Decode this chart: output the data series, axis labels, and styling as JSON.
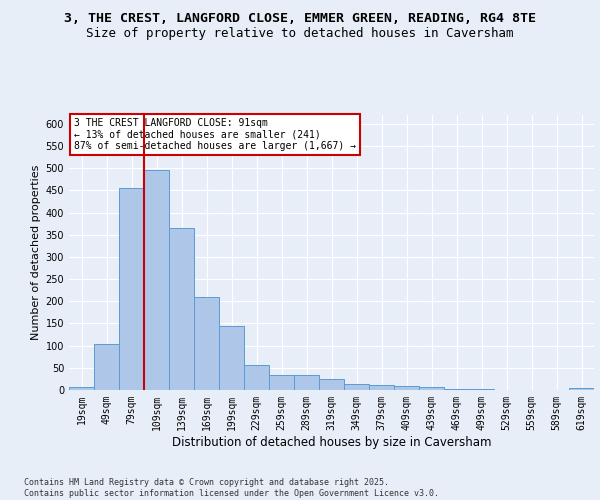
{
  "title_line1": "3, THE CREST, LANGFORD CLOSE, EMMER GREEN, READING, RG4 8TE",
  "title_line2": "Size of property relative to detached houses in Caversham",
  "xlabel": "Distribution of detached houses by size in Caversham",
  "ylabel": "Number of detached properties",
  "bar_labels": [
    "19sqm",
    "49sqm",
    "79sqm",
    "109sqm",
    "139sqm",
    "169sqm",
    "199sqm",
    "229sqm",
    "259sqm",
    "289sqm",
    "319sqm",
    "349sqm",
    "379sqm",
    "409sqm",
    "439sqm",
    "469sqm",
    "499sqm",
    "529sqm",
    "559sqm",
    "589sqm",
    "619sqm"
  ],
  "bar_values": [
    7,
    103,
    455,
    497,
    365,
    210,
    145,
    57,
    33,
    33,
    24,
    13,
    12,
    9,
    6,
    3,
    2,
    1,
    0,
    0,
    4
  ],
  "bar_color": "#aec6e8",
  "bar_edgecolor": "#5b9bd5",
  "annotation_text": "3 THE CREST LANGFORD CLOSE: 91sqm\n← 13% of detached houses are smaller (241)\n87% of semi-detached houses are larger (1,667) →",
  "annotation_box_color": "#ffffff",
  "annotation_box_edgecolor": "#cc0000",
  "red_line_color": "#cc0000",
  "ylim": [
    0,
    620
  ],
  "yticks": [
    0,
    50,
    100,
    150,
    200,
    250,
    300,
    350,
    400,
    450,
    500,
    550,
    600
  ],
  "bg_color": "#e8eef8",
  "plot_bg_color": "#e8eef8",
  "footer_text": "Contains HM Land Registry data © Crown copyright and database right 2025.\nContains public sector information licensed under the Open Government Licence v3.0.",
  "title_fontsize": 9.5,
  "subtitle_fontsize": 9,
  "tick_fontsize": 7,
  "xlabel_fontsize": 8.5,
  "ylabel_fontsize": 8
}
